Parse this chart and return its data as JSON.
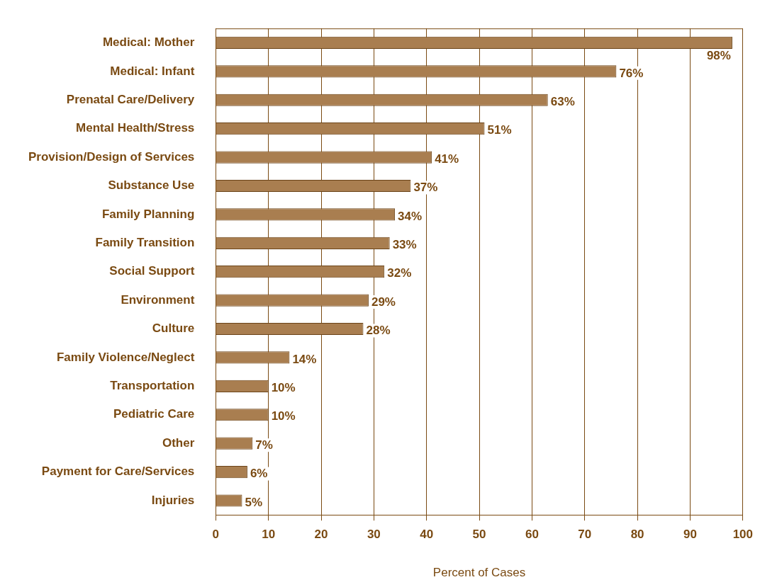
{
  "chart_data": {
    "type": "bar",
    "orientation": "horizontal",
    "xlabel": "Percent of Cases",
    "categories": [
      "Medical: Mother",
      "Medical: Infant",
      "Prenatal Care/Delivery",
      "Mental Health/Stress",
      "Provision/Design of Services",
      "Substance Use",
      "Family Planning",
      "Family Transition",
      "Social Support",
      "Environment",
      "Culture",
      "Family Violence/Neglect",
      "Transportation",
      "Pediatric Care",
      "Other",
      "Payment for Care/Services",
      "Injuries"
    ],
    "values": [
      98,
      76,
      63,
      51,
      41,
      37,
      34,
      33,
      32,
      29,
      28,
      14,
      10,
      10,
      7,
      6,
      5
    ],
    "value_labels": [
      "98%",
      "76%",
      "63%",
      "51%",
      "41%",
      "37%",
      "34%",
      "33%",
      "32%",
      "29%",
      "28%",
      "14%",
      "10%",
      "10%",
      "7%",
      "6%",
      "5%"
    ],
    "color": "#a97e50",
    "xlim": [
      0,
      100
    ],
    "xticks": [
      0,
      10,
      20,
      30,
      40,
      50,
      60,
      70,
      80,
      90,
      100
    ],
    "grid": "x",
    "legend": false
  }
}
